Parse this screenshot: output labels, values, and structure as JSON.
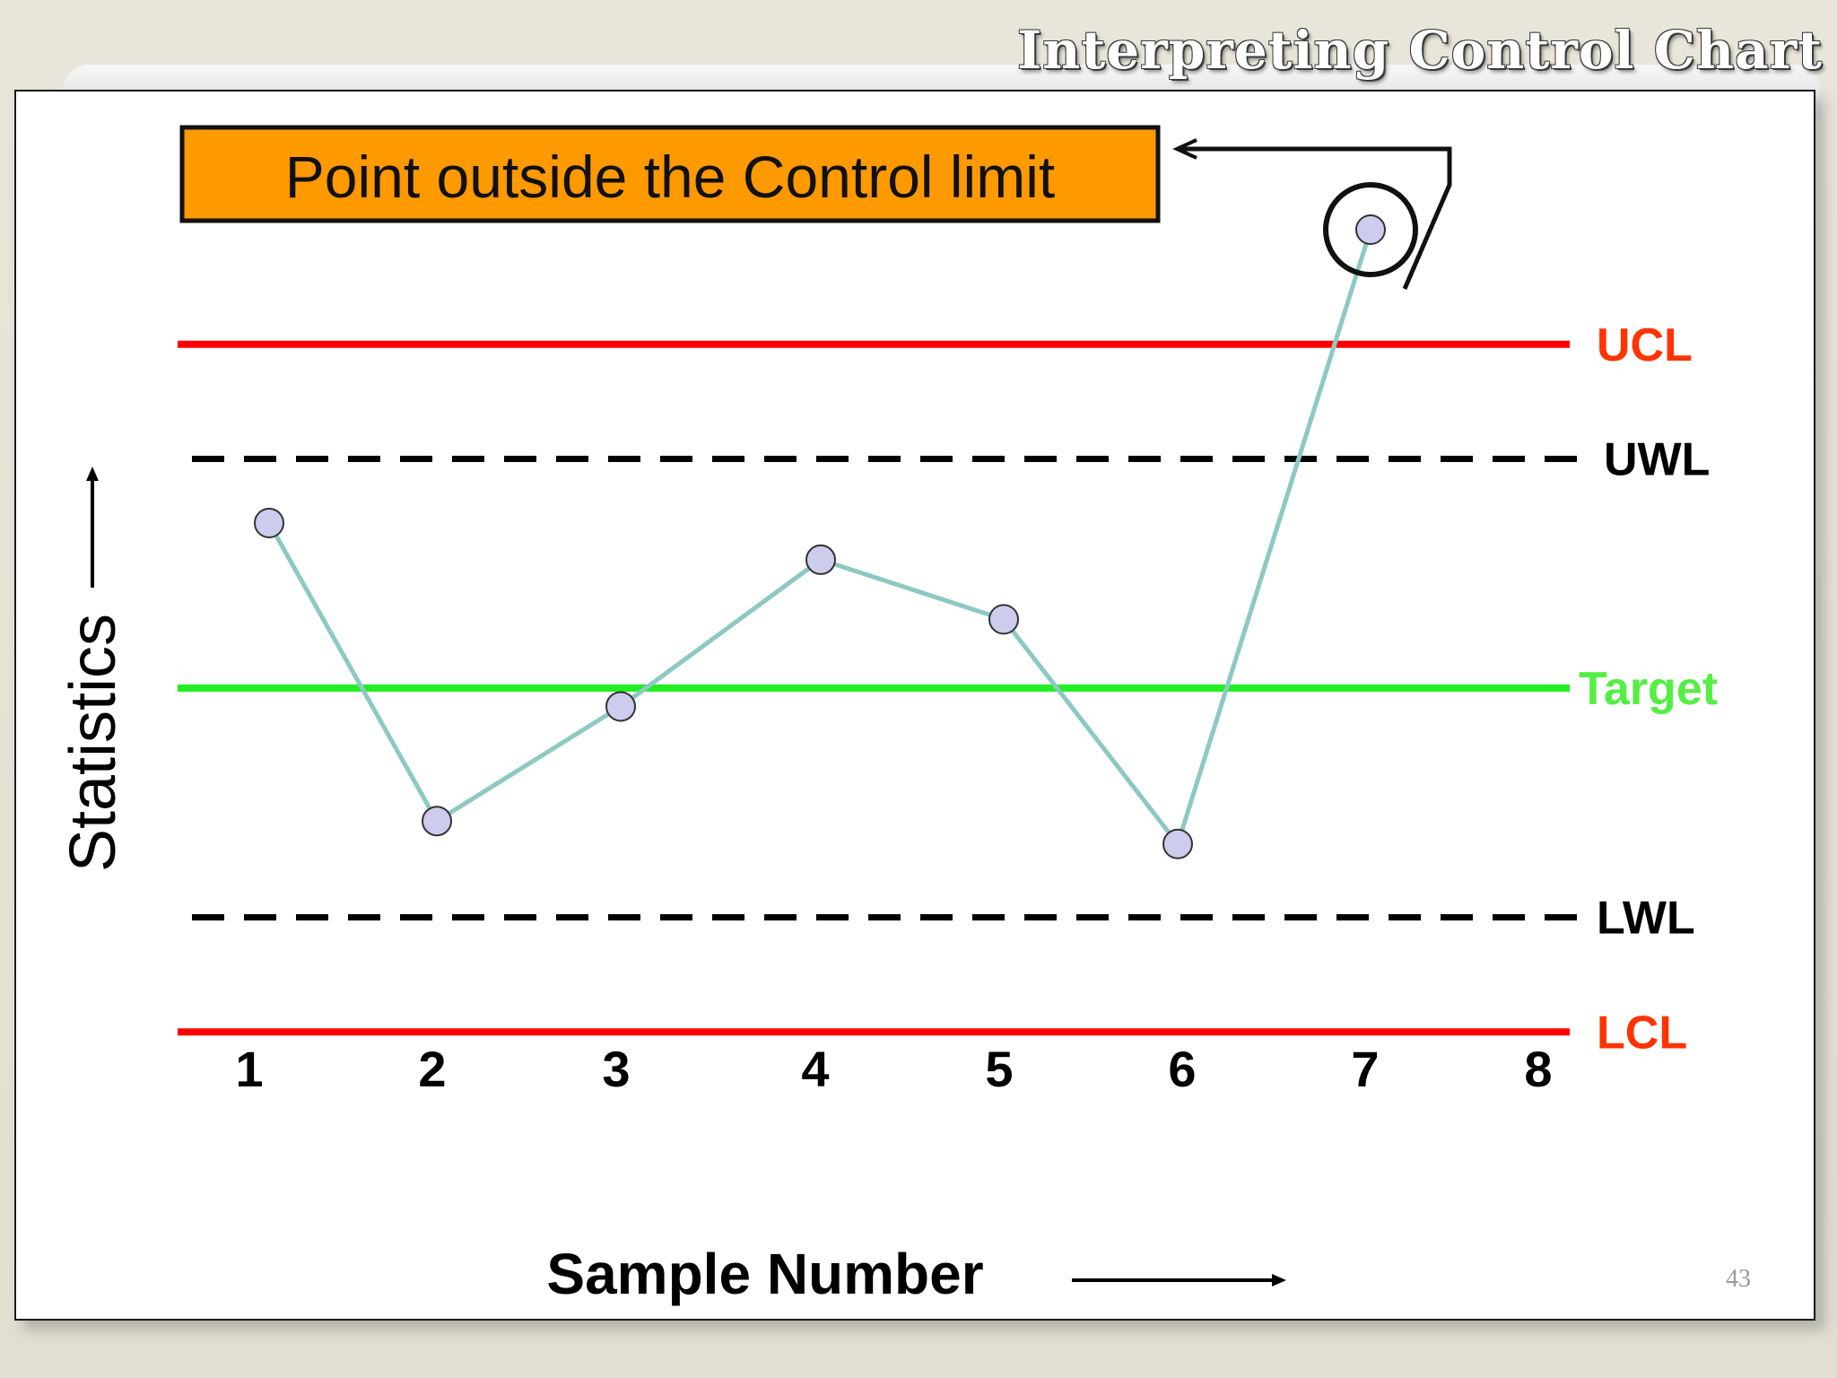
{
  "slide": {
    "title": "Interpreting Control Chart",
    "page_number": "43"
  },
  "callout": {
    "text": "Point outside the Control limit",
    "fill_color": "#ff9900"
  },
  "chart_data": {
    "type": "line",
    "title": "",
    "xlabel": "Sample Number",
    "ylabel": "Statistics",
    "categories": [
      "1",
      "2",
      "3",
      "4",
      "5",
      "6",
      "7",
      "8"
    ],
    "points": [
      {
        "sample": 1,
        "value": 0.72
      },
      {
        "sample": 2,
        "value": -0.58
      },
      {
        "sample": 3,
        "value": -0.08
      },
      {
        "sample": 4,
        "value": 0.56
      },
      {
        "sample": 5,
        "value": 0.3
      },
      {
        "sample": 6,
        "value": -0.68
      },
      {
        "sample": 7,
        "value": 2.0
      }
    ],
    "limits": [
      {
        "name": "UCL",
        "value": 1.5,
        "style": "solid",
        "color": "#ff0000",
        "label_color": "#ff3300"
      },
      {
        "name": "UWL",
        "value": 1.0,
        "style": "dashed",
        "color": "#000000",
        "label_color": "#000000"
      },
      {
        "name": "Target",
        "value": 0.0,
        "style": "solid",
        "color": "#22ee22",
        "label_color": "#55ee44"
      },
      {
        "name": "LWL",
        "value": -1.0,
        "style": "dashed",
        "color": "#000000",
        "label_color": "#000000"
      },
      {
        "name": "LCL",
        "value": -1.5,
        "style": "solid",
        "color": "#ff0000",
        "label_color": "#ff3300"
      }
    ],
    "highlighted_sample": 7,
    "series_color": "#8cc9c2",
    "marker_color": "#cccced",
    "grid": false,
    "ylim": [
      -2.0,
      2.2
    ]
  }
}
